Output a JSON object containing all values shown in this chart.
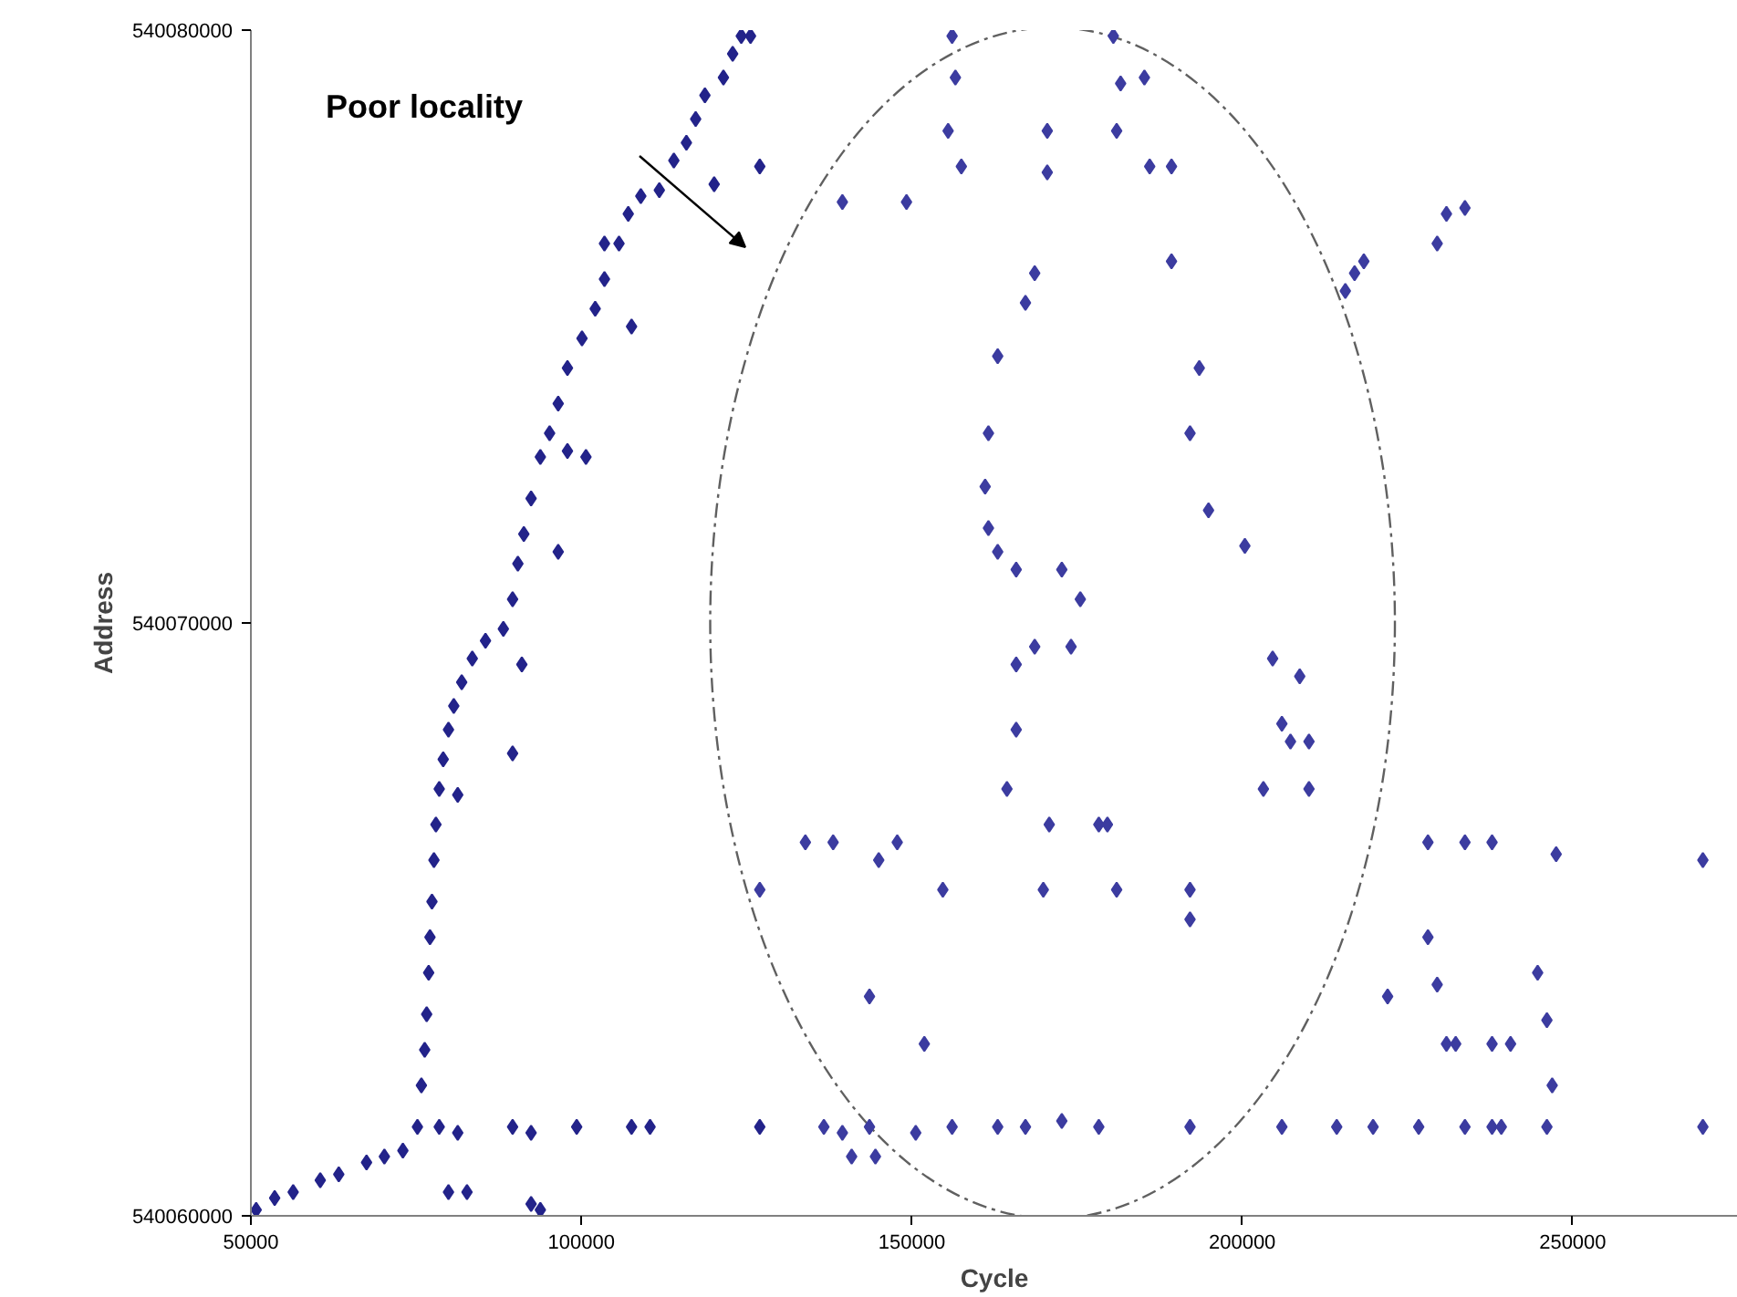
{
  "chart_data": {
    "type": "scatter",
    "xlabel": "Cycle",
    "ylabel": "Address",
    "annotations": [
      "Poor locality"
    ],
    "xlim": [
      50000,
      275000
    ],
    "xticks": [
      50000,
      100000,
      150000,
      200000,
      250000
    ],
    "ylim": [
      540060000,
      540080000
    ],
    "yticks": [
      540060000,
      540070000,
      540080000
    ],
    "grid": false,
    "marker": "diamond",
    "series": [
      {
        "color": "#23238a",
        "x": [
          50800,
          53600,
          56400,
          60500,
          63300,
          67500,
          70200,
          73000,
          75200,
          75800,
          76300,
          76600,
          76900,
          77100,
          77400,
          77700,
          78000,
          78500,
          79100,
          79900,
          80700,
          81900,
          83500,
          85500,
          88200,
          89600,
          90400,
          91300,
          92400,
          93800,
          95200,
          96500,
          97900,
          100100,
          102100,
          103500,
          105700,
          107100,
          109000,
          111800,
          114000,
          115900,
          117300,
          118700,
          121500,
          122900,
          124200,
          125600,
          78500,
          81300,
          89600,
          92400,
          99300,
          107600,
          110400,
          127000,
          92400,
          93800,
          79900,
          82700,
          81300,
          89600,
          91000,
          97900,
          96500,
          100700,
          107600,
          103500,
          120100,
          127000
        ],
        "values": [
          540060100,
          540060300,
          540060400,
          540060600,
          540060700,
          540060900,
          540061000,
          540061100,
          540061500,
          540062200,
          540062800,
          540063400,
          540064100,
          540064700,
          540065300,
          540066000,
          540066600,
          540067200,
          540067700,
          540068200,
          540068600,
          540069000,
          540069400,
          540069700,
          540069900,
          540070400,
          540071000,
          540071500,
          540072100,
          540072800,
          540073200,
          540073700,
          540074300,
          540074800,
          540075300,
          540075800,
          540076400,
          540076900,
          540077200,
          540077300,
          540077800,
          540078100,
          540078500,
          540078900,
          540079200,
          540079600,
          540079900,
          540079900,
          540061500,
          540061400,
          540061500,
          540061400,
          540061500,
          540061500,
          540061500,
          540061500,
          540060200,
          540060100,
          540060400,
          540060400,
          540067100,
          540067800,
          540069300,
          540072900,
          540071200,
          540072800,
          540075000,
          540076400,
          540077400,
          540077700
        ]
      },
      {
        "color": "#3c3ca0",
        "x": [
          156100,
          156600,
          155500,
          157500,
          170500,
          170500,
          180500,
          181600,
          181000,
          186000,
          185200,
          189300,
          139500,
          149200,
          168600,
          167200,
          163000,
          161600,
          161100,
          161600,
          163000,
          165800,
          172700,
          175500,
          174100,
          168600,
          165800,
          165800,
          164400,
          170800,
          169900,
          178300,
          192100,
          193500,
          194900,
          200400,
          204600,
          206000,
          208700,
          210100,
          210100,
          203200,
          189300,
          192100,
          192100,
          181000,
          179600,
          136700,
          139500,
          143600,
          150600,
          156100,
          163000,
          167200,
          172700,
          178300,
          192100,
          206000,
          214300,
          219800,
          226700,
          233700,
          237800,
          140900,
          144500,
          151900,
          143600,
          138100,
          147800,
          145000,
          154700,
          127000,
          133900,
          215600,
          217000,
          218400,
          229500,
          230900,
          233700,
          228100,
          233700,
          237800,
          239200,
          228100,
          229500,
          230900,
          232300,
          237800,
          240600,
          244700,
          246100,
          246900,
          246100,
          247500,
          269700,
          269700,
          222000,
          207300
        ],
        "values": [
          540079900,
          540079200,
          540078300,
          540077700,
          540078300,
          540077600,
          540079900,
          540079100,
          540078300,
          540077700,
          540079200,
          540077700,
          540077100,
          540077100,
          540075900,
          540075400,
          540074500,
          540073200,
          540072300,
          540071600,
          540071200,
          540070900,
          540070900,
          540070400,
          540069600,
          540069600,
          540069300,
          540068200,
          540067200,
          540066600,
          540065500,
          540066600,
          540073200,
          540074300,
          540071900,
          540071300,
          540069400,
          540068300,
          540069100,
          540068000,
          540067200,
          540067200,
          540076100,
          540065500,
          540065000,
          540065500,
          540066600,
          540061500,
          540061400,
          540061500,
          540061400,
          540061500,
          540061500,
          540061500,
          540061600,
          540061500,
          540061500,
          540061500,
          540061500,
          540061500,
          540061500,
          540061500,
          540061500,
          540061000,
          540061000,
          540062900,
          540063700,
          540066300,
          540066300,
          540066000,
          540065500,
          540065500,
          540066300,
          540075600,
          540075900,
          540076100,
          540076400,
          540076900,
          540077000,
          540066300,
          540066300,
          540066300,
          540061500,
          540064700,
          540063900,
          540062900,
          540062900,
          540062900,
          540062900,
          540064100,
          540063300,
          540062200,
          540061500,
          540066100,
          540066000,
          540061500,
          540063700,
          540068000
        ]
      }
    ]
  }
}
